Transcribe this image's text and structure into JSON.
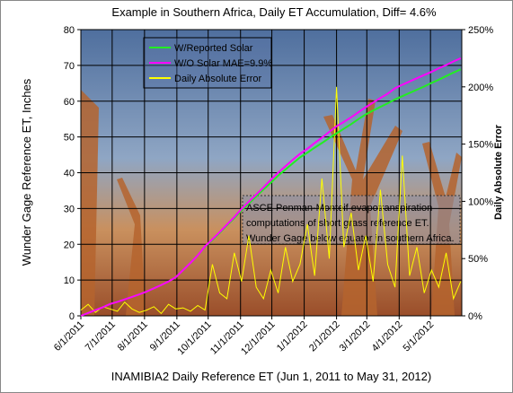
{
  "chart_data": {
    "type": "line",
    "title": "Example in Southern Africa,  Daily ET Accumulation, Diff= 4.6%",
    "x_label": "INAMIBIA2 Daily Reference ET (Jun 1, 2011 to May 31, 2012)",
    "y_label": "Wunder Gage Reference ET, Inches",
    "y2_label": "Daily Absolute Error",
    "annotation": [
      "ASCE Penman-Monteif evapotranspiration",
      "computations of short grass reference ET.",
      "Wunder Gage below equator in southern Africa."
    ],
    "x": [
      "6/1/2011",
      "6/8/2011",
      "6/15/2011",
      "6/22/2011",
      "6/29/2011",
      "7/6/2011",
      "7/13/2011",
      "7/20/2011",
      "7/27/2011",
      "8/3/2011",
      "8/10/2011",
      "8/17/2011",
      "8/24/2011",
      "8/31/2011",
      "9/7/2011",
      "9/14/2011",
      "9/21/2011",
      "9/28/2011",
      "10/5/2011",
      "10/12/2011",
      "10/19/2011",
      "10/26/2011",
      "11/2/2011",
      "11/9/2011",
      "11/16/2011",
      "11/23/2011",
      "11/30/2011",
      "12/7/2011",
      "12/14/2011",
      "12/21/2011",
      "12/28/2011",
      "1/4/2012",
      "1/11/2012",
      "1/18/2012",
      "1/25/2012",
      "2/1/2012",
      "2/8/2012",
      "2/15/2012",
      "2/22/2012",
      "2/29/2012",
      "3/7/2012",
      "3/14/2012",
      "3/21/2012",
      "3/28/2012",
      "4/4/2012",
      "4/11/2012",
      "4/18/2012",
      "4/25/2012",
      "5/2/2012",
      "5/9/2012",
      "5/16/2012",
      "5/23/2012",
      "5/30/2012"
    ],
    "series": [
      {
        "name": "W/Reported Solar",
        "color": "#22ee22",
        "values": [
          0,
          0.8,
          1.6,
          2.4,
          3.3,
          3.9,
          4.6,
          5.3,
          6.0,
          6.8,
          7.7,
          8.6,
          9.6,
          10.8,
          12.8,
          14.8,
          16.9,
          19.3,
          21.2,
          23.2,
          25.3,
          27.3,
          29.5,
          31.4,
          33.4,
          35.3,
          37.2,
          39.2,
          40.9,
          42.6,
          44.3,
          45.6,
          47.0,
          48.3,
          49.7,
          51.0,
          52.3,
          53.6,
          55.0,
          56.3,
          57.4,
          58.4,
          59.4,
          60.5,
          61.4,
          62.3,
          63.2,
          64.1,
          65.1,
          66.0,
          67.0,
          68.0,
          68.9
        ]
      },
      {
        "name": "W/O Solar MAE=9.9%",
        "color": "#ff00ff",
        "values": [
          0,
          0.8,
          1.6,
          2.4,
          3.3,
          3.9,
          4.6,
          5.3,
          6.0,
          6.8,
          7.7,
          8.6,
          9.6,
          10.8,
          12.8,
          14.8,
          16.9,
          19.4,
          21.4,
          23.4,
          25.5,
          27.6,
          29.9,
          31.9,
          33.9,
          35.9,
          38.0,
          40.0,
          41.8,
          43.6,
          45.3,
          46.7,
          48.3,
          49.8,
          51.4,
          53.0,
          54.2,
          55.5,
          56.9,
          58.3,
          59.6,
          60.9,
          62.1,
          63.6,
          64.6,
          65.5,
          66.4,
          67.3,
          68.2,
          69.2,
          70.1,
          71.1,
          72.0
        ]
      },
      {
        "name": "Daily Absolute Error",
        "color": "#ffff00",
        "axis": "y2",
        "values": [
          5,
          10,
          3,
          8,
          6,
          4,
          12,
          6,
          3,
          5,
          8,
          2,
          10,
          6,
          7,
          4,
          9,
          5,
          45,
          20,
          15,
          55,
          30,
          70,
          25,
          15,
          40,
          20,
          60,
          30,
          45,
          80,
          35,
          120,
          50,
          200,
          60,
          90,
          40,
          70,
          30,
          110,
          45,
          25,
          140,
          35,
          60,
          20,
          40,
          25,
          55,
          15,
          30
        ]
      }
    ],
    "xlim": [
      "6/1/2011",
      "5/31/2012"
    ],
    "xticks": [
      "6/1/2011",
      "7/1/2011",
      "8/1/2011",
      "9/1/2011",
      "10/1/2011",
      "11/1/2011",
      "12/1/2011",
      "1/1/2012",
      "2/1/2012",
      "3/1/2012",
      "4/1/2012",
      "5/1/2012"
    ],
    "ylim": [
      0,
      80
    ],
    "yticks": [
      0,
      10,
      20,
      30,
      40,
      50,
      60,
      70,
      80
    ],
    "y2lim": [
      0,
      250
    ],
    "y2ticks": [
      {
        "value": 0,
        "label": "0%"
      },
      {
        "value": 50,
        "label": "50%"
      },
      {
        "value": 100,
        "label": "100%"
      },
      {
        "value": 150,
        "label": "150%"
      },
      {
        "value": 200,
        "label": "200%"
      },
      {
        "value": 250,
        "label": "250%"
      }
    ],
    "grid": true,
    "legend": "upper left"
  }
}
